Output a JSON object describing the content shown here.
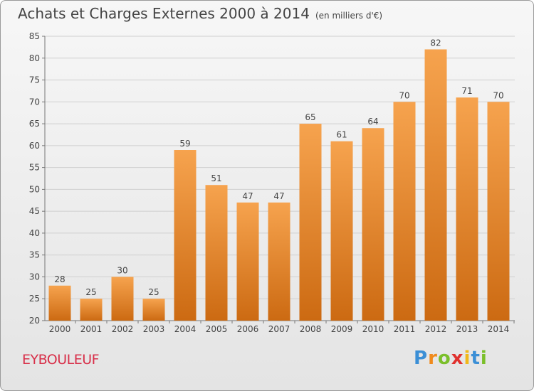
{
  "title": "Achats et Charges Externes 2000 à 2014",
  "unit_label": "(en milliers d'€)",
  "commune": "EYBOULEUF",
  "logo": {
    "letters": [
      "P",
      "r",
      "o",
      "x",
      "i",
      "t",
      "i"
    ],
    "colors": [
      "#3b8fd6",
      "#f08a1c",
      "#7bbf2a",
      "#e0312e",
      "#f0b81a",
      "#3b8fd6",
      "#7bbf2a"
    ]
  },
  "colors": {
    "bar_top": "#f6a34e",
    "bar_bottom": "#cc6a12",
    "grid": "#cfcfcf",
    "text": "#444444"
  },
  "chart_data": {
    "type": "bar",
    "title": "Achats et Charges Externes 2000 à 2014",
    "subtitle": "(en milliers d'€)",
    "categories": [
      "2000",
      "2001",
      "2002",
      "2003",
      "2004",
      "2005",
      "2006",
      "2007",
      "2008",
      "2009",
      "2010",
      "2011",
      "2012",
      "2013",
      "2014"
    ],
    "values": [
      28,
      25,
      30,
      25,
      59,
      51,
      47,
      47,
      65,
      61,
      64,
      70,
      82,
      71,
      70
    ],
    "ylim": [
      20,
      85
    ],
    "yticks": [
      20,
      25,
      30,
      35,
      40,
      45,
      50,
      55,
      60,
      65,
      70,
      75,
      80,
      85
    ],
    "grid": true,
    "legend": "none"
  }
}
